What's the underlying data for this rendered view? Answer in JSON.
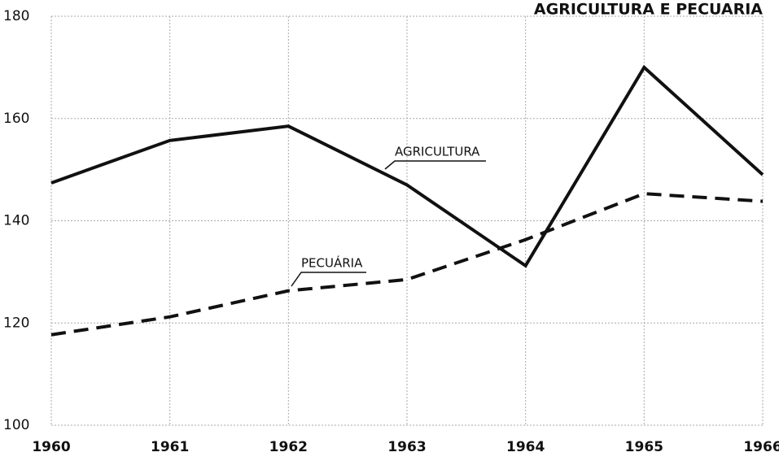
{
  "chart_data": {
    "type": "line",
    "title": "AGRICULTURA E PECUARIA",
    "x": [
      1960,
      1961,
      1962,
      1963,
      1964,
      1965,
      1966
    ],
    "series": [
      {
        "name": "AGRICULTURA",
        "color": "#111111",
        "dash": false,
        "values": [
          147.4,
          155.7,
          158.5,
          147,
          131.2,
          170,
          149
        ]
      },
      {
        "name": "PECUÁRIA",
        "color": "#111111",
        "dash": true,
        "values": [
          117.7,
          121.2,
          126.3,
          128.5,
          136.3,
          145.3,
          143.8
        ]
      }
    ],
    "xlim": [
      1960,
      1966
    ],
    "xticks": [
      1960,
      1961,
      1962,
      1963,
      1964,
      1965,
      1966
    ],
    "ylim": [
      100,
      180
    ],
    "yticks": [
      100,
      120,
      140,
      160,
      180
    ],
    "grid": true
  }
}
